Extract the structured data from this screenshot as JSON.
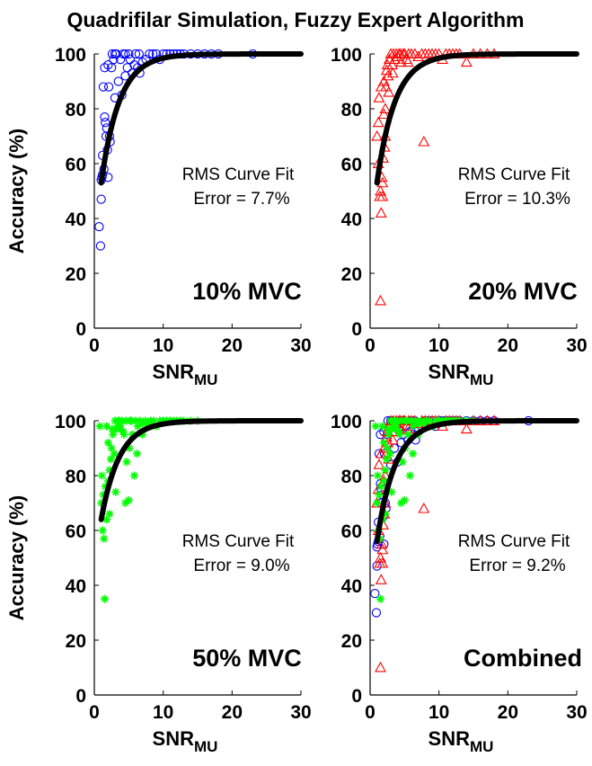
{
  "figure": {
    "title": "Quadrifilar Simulation, Fuzzy Expert Algorithm",
    "colors": {
      "10% MVC": "#0000ff",
      "20% MVC": "#ff0000",
      "50% MVC": "#00ff00",
      "fit": "#000000"
    }
  },
  "chart_data": [
    {
      "type": "scatter",
      "label": "10% MVC",
      "marker": "circle",
      "color": "#0000ff",
      "xlabel": "SNR",
      "xlabel_sub": "MU",
      "ylabel": "Accuracy (%)",
      "xlim": [
        0,
        30
      ],
      "ylim": [
        0,
        100
      ],
      "xticks": [
        0,
        10,
        20,
        30
      ],
      "yticks": [
        0,
        20,
        40,
        60,
        80,
        100
      ],
      "annotation": [
        "RMS Curve Fit",
        "Error = 7.7%"
      ],
      "fit": {
        "type": "exponential-saturation",
        "x_range": [
          1,
          30
        ],
        "y_start": 53
      },
      "series": [
        {
          "marker": "circle",
          "color": "#0000ff",
          "x": [
            0.7,
            0.9,
            1.0,
            1.1,
            1.2,
            1.2,
            1.3,
            1.4,
            1.5,
            1.6,
            1.7,
            1.8,
            1.9,
            2.0,
            2.1,
            2.2,
            2.3,
            2.5,
            2.6,
            2.8,
            3.0,
            3.2,
            3.5,
            3.8,
            4.0,
            4.2,
            4.5,
            4.8,
            5.0,
            5.2,
            5.5,
            5.8,
            6.0,
            6.3,
            6.6,
            7.0,
            7.5,
            8.0,
            8.5,
            9.0,
            9.5,
            10.0,
            10.5,
            11.0,
            11.5,
            12.0,
            12.5,
            13.0,
            14.0,
            15.0,
            16.0,
            17.0,
            18.0,
            23.0,
            1.0,
            1.5,
            2.0,
            3.0,
            4.5,
            6.5
          ],
          "y": [
            37,
            30,
            47,
            55,
            63,
            56,
            88,
            58,
            95,
            75,
            70,
            73,
            65,
            55,
            88,
            70,
            68,
            95,
            100,
            98,
            100,
            100,
            90,
            98,
            85,
            100,
            100,
            95,
            100,
            98,
            93,
            96,
            100,
            95,
            93,
            97,
            98,
            100,
            100,
            100,
            98,
            100,
            100,
            100,
            100,
            100,
            100,
            100,
            100,
            100,
            100,
            100,
            100,
            100,
            54,
            77,
            96,
            84,
            92,
            100
          ]
        }
      ]
    },
    {
      "type": "scatter",
      "label": "20% MVC",
      "marker": "triangle",
      "color": "#ff0000",
      "xlabel": "SNR",
      "xlabel_sub": "MU",
      "ylabel": "",
      "xlim": [
        0,
        30
      ],
      "ylim": [
        0,
        100
      ],
      "xticks": [
        0,
        10,
        20,
        30
      ],
      "yticks": [
        0,
        20,
        40,
        60,
        80,
        100
      ],
      "annotation": [
        "RMS Curve Fit",
        "Error = 10.3%"
      ],
      "fit": {
        "type": "exponential-saturation",
        "x_range": [
          1,
          30
        ],
        "y_start": 53
      },
      "series": [
        {
          "marker": "triangle",
          "color": "#ff0000",
          "x": [
            1.0,
            1.2,
            1.3,
            1.5,
            1.5,
            1.6,
            1.7,
            1.8,
            1.9,
            2.0,
            2.0,
            2.1,
            2.2,
            2.3,
            2.4,
            2.5,
            2.6,
            2.8,
            3.0,
            3.2,
            3.4,
            3.6,
            3.8,
            4.0,
            4.2,
            4.5,
            4.8,
            5.0,
            5.3,
            5.6,
            6.0,
            6.5,
            7.0,
            7.5,
            8.0,
            8.5,
            9.0,
            9.5,
            10.0,
            10.5,
            11.0,
            11.5,
            12.0,
            12.5,
            13.0,
            14.0,
            15.0,
            16.0,
            17.0,
            18.0,
            1.4,
            1.8,
            2.2,
            2.7,
            3.3,
            4.4,
            5.5,
            7.8,
            1.6,
            1.2
          ],
          "y": [
            70,
            60,
            84,
            10,
            50,
            42,
            55,
            48,
            62,
            78,
            90,
            66,
            80,
            88,
            94,
            96,
            92,
            98,
            100,
            96,
            100,
            98,
            100,
            99,
            100,
            97,
            100,
            100,
            98,
            100,
            100,
            100,
            99,
            100,
            100,
            100,
            100,
            100,
            100,
            98,
            100,
            100,
            100,
            100,
            100,
            97,
            100,
            100,
            100,
            100,
            48,
            53,
            70,
            86,
            93,
            100,
            97,
            68,
            88,
            75
          ]
        }
      ]
    },
    {
      "type": "scatter",
      "label": "50% MVC",
      "marker": "asterisk",
      "color": "#00ff00",
      "xlabel": "SNR",
      "xlabel_sub": "MU",
      "ylabel": "Accuracy (%)",
      "xlim": [
        0,
        30
      ],
      "ylim": [
        0,
        100
      ],
      "xticks": [
        0,
        10,
        20,
        30
      ],
      "yticks": [
        0,
        20,
        40,
        60,
        80,
        100
      ],
      "annotation": [
        "RMS Curve Fit",
        "Error = 9.0%"
      ],
      "fit": {
        "type": "exponential-saturation",
        "x_range": [
          1,
          30
        ],
        "y_start": 64
      },
      "series": [
        {
          "marker": "asterisk",
          "color": "#00ff00",
          "x": [
            1.0,
            1.2,
            1.4,
            1.5,
            1.6,
            1.8,
            2.0,
            2.0,
            2.2,
            2.4,
            2.5,
            2.7,
            2.9,
            3.0,
            3.2,
            3.4,
            3.6,
            3.8,
            4.0,
            4.2,
            4.5,
            4.7,
            5.0,
            5.2,
            5.5,
            5.8,
            6.0,
            6.3,
            6.6,
            7.0,
            7.4,
            7.8,
            8.2,
            8.6,
            9.0,
            9.5,
            10.0,
            10.5,
            11.0,
            11.5,
            12.0,
            12.5,
            13.0,
            14.0,
            15.0,
            1.8,
            2.6,
            3.5,
            4.3,
            5.1,
            6.2,
            1.3,
            2.2,
            3.1,
            4.6,
            5.4,
            0.8,
            1.1,
            3.8,
            7.0
          ],
          "y": [
            70,
            60,
            57,
            35,
            76,
            64,
            78,
            92,
            82,
            86,
            90,
            95,
            88,
            100,
            97,
            98,
            100,
            99,
            100,
            96,
            70,
            85,
            71,
            100,
            95,
            80,
            100,
            98,
            100,
            95,
            100,
            99,
            100,
            100,
            98,
            100,
            100,
            100,
            100,
            100,
            100,
            100,
            100,
            100,
            100,
            98,
            97,
            100,
            95,
            90,
            88,
            73,
            66,
            74,
            100,
            100,
            98,
            80,
            97,
            99
          ]
        }
      ]
    },
    {
      "type": "scatter",
      "label": "Combined",
      "xlabel": "SNR",
      "xlabel_sub": "MU",
      "ylabel": "",
      "xlim": [
        0,
        30
      ],
      "ylim": [
        0,
        100
      ],
      "xticks": [
        0,
        10,
        20,
        30
      ],
      "yticks": [
        0,
        20,
        40,
        60,
        80,
        100
      ],
      "annotation": [
        "RMS Curve Fit",
        "Error = 9.2%"
      ],
      "fit": {
        "type": "exponential-saturation",
        "x_range": [
          1,
          30
        ],
        "y_start": 56
      },
      "series": [
        {
          "marker": "circle",
          "color": "#0000ff",
          "from": "10% MVC"
        },
        {
          "marker": "triangle",
          "color": "#ff0000",
          "from": "20% MVC"
        },
        {
          "marker": "asterisk",
          "color": "#00ff00",
          "from": "50% MVC"
        }
      ]
    }
  ]
}
